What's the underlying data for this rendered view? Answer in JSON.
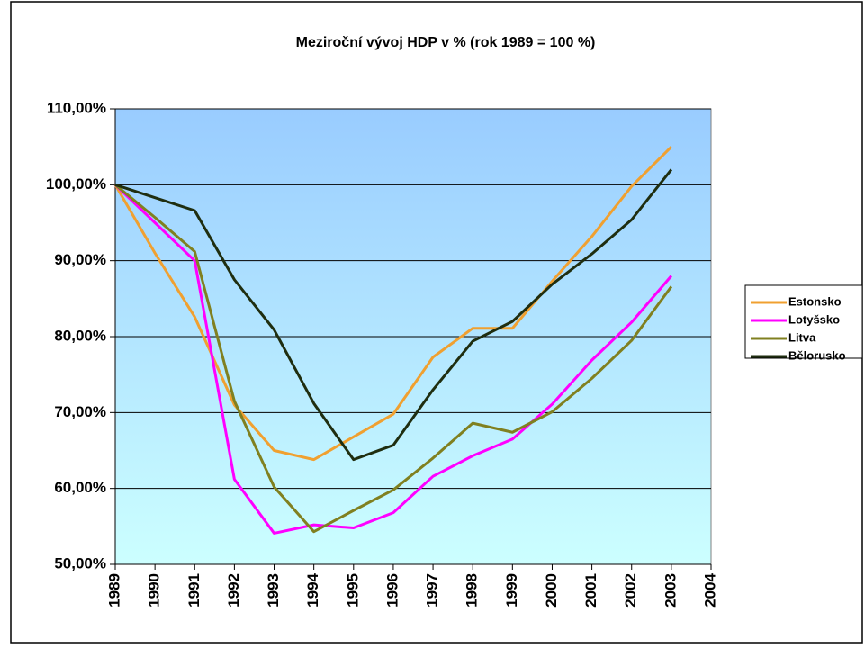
{
  "chart_data": {
    "type": "line",
    "title": "Meziroční vývoj HDP v % (rok 1989 = 100 %)",
    "categories": [
      "1989",
      "1990",
      "1991",
      "1992",
      "1993",
      "1994",
      "1995",
      "1996",
      "1997",
      "1998",
      "1999",
      "2000",
      "2001",
      "2002",
      "2003",
      "2004"
    ],
    "series": [
      {
        "name": "Estonsko",
        "color": "#f0a030",
        "values": [
          100,
          91,
          82.6,
          71,
          65,
          63.8,
          66.8,
          69.8,
          77.3,
          81.1,
          81.1,
          87.3,
          93.2,
          99.8,
          105,
          null
        ]
      },
      {
        "name": "Lotyšsko",
        "color": "#ff00ff",
        "values": [
          100,
          95,
          90,
          61.2,
          54.1,
          55.2,
          54.8,
          56.8,
          61.6,
          64.3,
          66.5,
          71.1,
          76.9,
          81.9,
          88,
          null
        ]
      },
      {
        "name": "Litva",
        "color": "#808020",
        "values": [
          100,
          95.7,
          91.2,
          71.5,
          60.2,
          54.3,
          57.1,
          59.8,
          64,
          68.6,
          67.4,
          70.1,
          74.5,
          79.5,
          86.6,
          null
        ]
      },
      {
        "name": "Bělorusko",
        "color": "#1f2e10",
        "values": [
          100,
          98.3,
          96.6,
          87.5,
          80.9,
          71.2,
          63.8,
          65.7,
          73,
          79.4,
          82,
          86.9,
          90.9,
          95.4,
          102,
          null
        ]
      }
    ],
    "ylim": [
      50,
      110
    ],
    "yticks": [
      {
        "value": 50,
        "label": "50,00%"
      },
      {
        "value": 60,
        "label": "60,00%"
      },
      {
        "value": 70,
        "label": "70,00%"
      },
      {
        "value": 80,
        "label": "80,00%"
      },
      {
        "value": 90,
        "label": "90,00%"
      },
      {
        "value": 100,
        "label": "100,00%"
      },
      {
        "value": 110,
        "label": "110,00%"
      }
    ],
    "grid": true,
    "legend": "right"
  }
}
